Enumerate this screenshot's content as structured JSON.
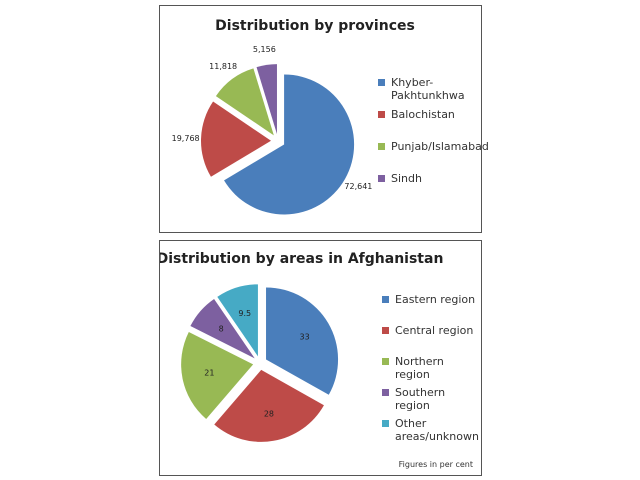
{
  "chart_data": [
    {
      "type": "pie",
      "title": "Distribution by provinces",
      "categories": [
        "Khyber-Pakhtunkhwa",
        "Balochistan",
        "Punjab/Islamabad",
        "Sindh"
      ],
      "values": [
        72641,
        19768,
        11818,
        5156
      ],
      "value_labels": [
        "72,641",
        "19,768",
        "11,818",
        "5,156"
      ],
      "colors": [
        "#4a7ebb",
        "#be4b48",
        "#98b954",
        "#7d60a0"
      ],
      "legend": "right"
    },
    {
      "type": "pie",
      "title": "Distribution by areas in Afghanistan",
      "categories": [
        "Eastern region",
        "Central region",
        "Northern region",
        "Southern region",
        "Other areas/unknown"
      ],
      "values": [
        33,
        28,
        21,
        8,
        9.5
      ],
      "colors": [
        "#4a7ebb",
        "#be4b48",
        "#98b954",
        "#7d60a0",
        "#46aac5"
      ],
      "legend": "right",
      "note": "Figures in per cent"
    }
  ]
}
